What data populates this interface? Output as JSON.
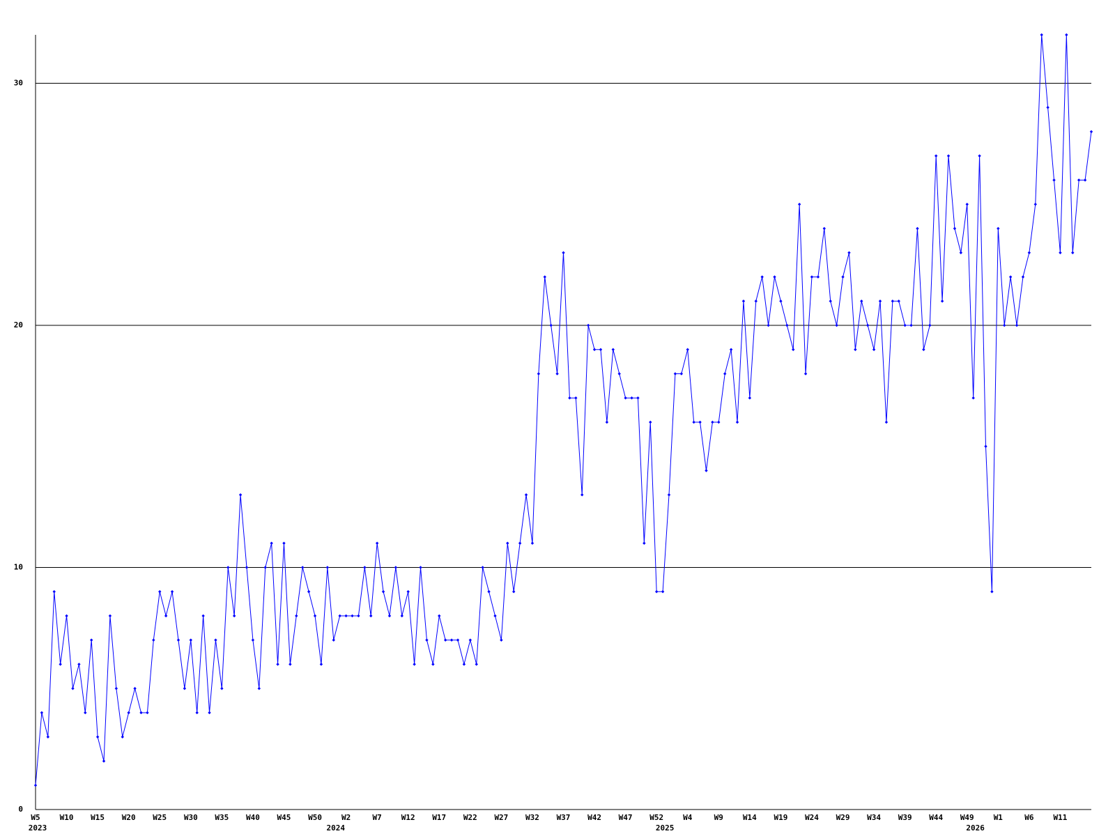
{
  "chart_data": {
    "type": "line",
    "color": "#0000ff",
    "grid": true,
    "ylim": [
      0,
      32
    ],
    "yticks": [
      0,
      10,
      20,
      30
    ],
    "categories": [
      "W5",
      null,
      null,
      null,
      null,
      "W10",
      null,
      null,
      null,
      null,
      "W15",
      null,
      null,
      null,
      null,
      "W20",
      null,
      null,
      null,
      null,
      "W25",
      null,
      null,
      null,
      null,
      "W30",
      null,
      null,
      null,
      null,
      "W35",
      null,
      null,
      null,
      null,
      "W40",
      null,
      null,
      null,
      null,
      "W45",
      null,
      null,
      null,
      null,
      "W50",
      null,
      null,
      null,
      null,
      "W2",
      null,
      null,
      null,
      null,
      "W7",
      null,
      null,
      null,
      null,
      "W12",
      null,
      null,
      null,
      null,
      "W17",
      null,
      null,
      null,
      null,
      "W22",
      null,
      null,
      null,
      null,
      "W27",
      null,
      null,
      null,
      null,
      "W32",
      null,
      null,
      null,
      null,
      "W37",
      null,
      null,
      null,
      null,
      "W42",
      null,
      null,
      null,
      null,
      "W47",
      null,
      null,
      null,
      null,
      "W52",
      null,
      null,
      null,
      null,
      "W4",
      null,
      null,
      null,
      null,
      "W9",
      null,
      null,
      null,
      null,
      "W14",
      null,
      null,
      null,
      null,
      "W19",
      null,
      null,
      null,
      null,
      "W24",
      null,
      null,
      null,
      null,
      "W29",
      null,
      null,
      null,
      null,
      "W34",
      null,
      null,
      null,
      null,
      "W39",
      null,
      null,
      null,
      null,
      "W44",
      null,
      null,
      null,
      null,
      "W49",
      null,
      null,
      null,
      null,
      "W1",
      null,
      null,
      null,
      null,
      "W6",
      null,
      null,
      null,
      null,
      "W11",
      null,
      null,
      null,
      null,
      null
    ],
    "years": [
      "2023",
      null,
      null,
      null,
      null,
      null,
      null,
      null,
      null,
      null,
      null,
      null,
      null,
      null,
      null,
      null,
      null,
      null,
      null,
      null,
      null,
      null,
      null,
      null,
      null,
      null,
      null,
      null,
      null,
      null,
      null,
      null,
      null,
      null,
      null,
      null,
      null,
      null,
      null,
      null,
      null,
      null,
      null,
      null,
      null,
      null,
      null,
      null,
      "2024",
      null,
      null,
      null,
      null,
      null,
      null,
      null,
      null,
      null,
      null,
      null,
      null,
      null,
      null,
      null,
      null,
      null,
      null,
      null,
      null,
      null,
      null,
      null,
      null,
      null,
      null,
      null,
      null,
      null,
      null,
      null,
      null,
      null,
      null,
      null,
      null,
      null,
      null,
      null,
      null,
      null,
      null,
      null,
      null,
      null,
      null,
      null,
      null,
      null,
      null,
      null,
      null,
      "2025",
      null,
      null,
      null,
      null,
      null,
      null,
      null,
      null,
      null,
      null,
      null,
      null,
      null,
      null,
      null,
      null,
      null,
      null,
      null,
      null,
      null,
      null,
      null,
      null,
      null,
      null,
      null,
      null,
      null,
      null,
      null,
      null,
      null,
      null,
      null,
      null,
      null,
      null,
      null,
      null,
      null,
      null,
      null,
      null,
      null,
      null,
      null,
      null,
      null,
      "2026",
      null,
      null,
      null,
      null,
      null,
      null,
      null,
      null,
      null,
      null,
      null,
      null,
      null,
      null,
      null
    ],
    "values": [
      1,
      4,
      3,
      9,
      6,
      8,
      5,
      6,
      4,
      7,
      3,
      2,
      8,
      5,
      3,
      4,
      5,
      4,
      4,
      7,
      9,
      8,
      9,
      7,
      5,
      7,
      4,
      8,
      4,
      7,
      5,
      10,
      8,
      13,
      10,
      7,
      5,
      10,
      11,
      6,
      11,
      6,
      8,
      10,
      9,
      8,
      6,
      10,
      7,
      8,
      8,
      8,
      8,
      10,
      8,
      11,
      9,
      8,
      10,
      8,
      9,
      6,
      10,
      7,
      6,
      8,
      7,
      7,
      7,
      6,
      7,
      6,
      10,
      9,
      8,
      7,
      11,
      9,
      11,
      13,
      11,
      18,
      22,
      20,
      18,
      23,
      17,
      17,
      13,
      20,
      19,
      19,
      16,
      19,
      18,
      17,
      17,
      17,
      11,
      16,
      9,
      9,
      13,
      18,
      18,
      19,
      16,
      16,
      14,
      16,
      16,
      18,
      19,
      16,
      21,
      17,
      21,
      22,
      20,
      22,
      21,
      20,
      19,
      25,
      18,
      22,
      22,
      24,
      21,
      20,
      22,
      23,
      19,
      21,
      20,
      19,
      21,
      16,
      21,
      21,
      20,
      20,
      24,
      19,
      20,
      27,
      21,
      27,
      24,
      23,
      25,
      17,
      27,
      15,
      9,
      24,
      20,
      22,
      20,
      22,
      23,
      25,
      32,
      29,
      26,
      23,
      32,
      23,
      26,
      26,
      28
    ]
  }
}
